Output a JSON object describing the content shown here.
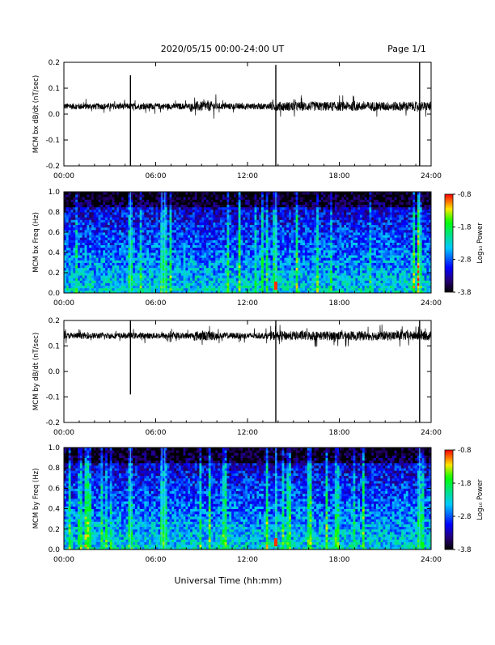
{
  "header": {
    "title": "2020/05/15  00:00-24:00 UT",
    "page": "Page 1/1"
  },
  "xaxis": {
    "label": "Universal Time (hh:mm)",
    "range": [
      0,
      24
    ],
    "ticks": [
      "00:00",
      "06:00",
      "12:00",
      "18:00",
      "24:00"
    ]
  },
  "colorbar": {
    "label": "Log₁₀ Power",
    "ticks": [
      "-0.8",
      "-1.8",
      "-2.8",
      "-3.8"
    ],
    "range": [
      -3.8,
      -0.8
    ]
  },
  "chart_data": [
    {
      "type": "line",
      "ylabel": "MCM bx dB/dt (nT/sec)",
      "ylim": [
        -0.2,
        0.2
      ],
      "yticks": [
        "-0.2",
        "-0.1",
        "0.0",
        "0.1",
        "0.2"
      ],
      "x_range_hours": [
        0,
        24
      ],
      "baseline": 0.03,
      "noise_amplitude": 0.012,
      "spikes": [
        {
          "x": 4.35,
          "low": -0.2,
          "high": 0.15
        },
        {
          "x": 13.85,
          "low": -0.2,
          "high": 0.19
        },
        {
          "x": 23.25,
          "low": -0.2,
          "high": 0.2
        }
      ]
    },
    {
      "type": "heatmap",
      "ylabel": "MCM bx Freq (Hz)",
      "ylim": [
        0.0,
        1.0
      ],
      "yticks": [
        "0.0",
        "0.2",
        "0.4",
        "0.6",
        "0.8",
        "1.0"
      ],
      "zlim": [
        -3.8,
        -0.8
      ],
      "bright_bands_hours": [
        4.35,
        6.4,
        6.6,
        13.85,
        23.25
      ]
    },
    {
      "type": "line",
      "ylabel": "MCM by dB/dt (nT/sec)",
      "ylim": [
        -0.2,
        0.2
      ],
      "yticks": [
        "-0.2",
        "-0.1",
        "0.0",
        "0.1",
        "0.2"
      ],
      "x_range_hours": [
        0,
        24
      ],
      "baseline": 0.14,
      "noise_amplitude": 0.012,
      "spikes": [
        {
          "x": 4.35,
          "low": -0.09,
          "high": 0.2
        },
        {
          "x": 13.85,
          "low": -0.2,
          "high": 0.2
        },
        {
          "x": 23.25,
          "low": -0.2,
          "high": 0.2
        }
      ]
    },
    {
      "type": "heatmap",
      "ylabel": "MCM by Freq (Hz)",
      "ylim": [
        0.0,
        1.0
      ],
      "yticks": [
        "0.0",
        "0.2",
        "0.4",
        "0.6",
        "0.8",
        "1.0"
      ],
      "zlim": [
        -3.8,
        -0.8
      ],
      "bright_bands_hours": [
        4.35,
        6.4,
        6.6,
        13.85,
        23.25
      ]
    }
  ]
}
